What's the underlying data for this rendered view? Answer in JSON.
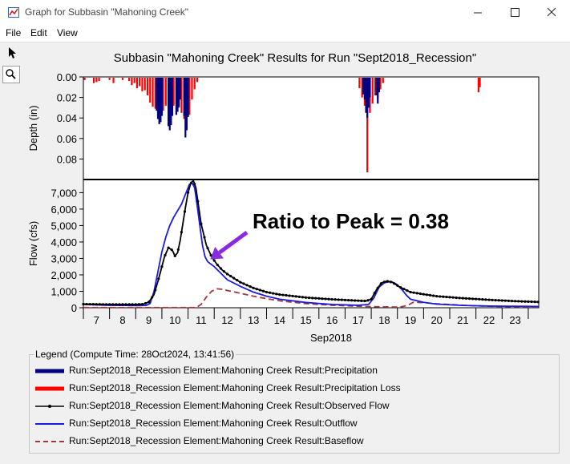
{
  "window": {
    "title": "Graph for Subbasin \"Mahoning Creek\"",
    "app_icon": "graph-app-icon",
    "controls": [
      "minimize-icon",
      "maximize-icon",
      "close-icon"
    ]
  },
  "menu": {
    "items": [
      "File",
      "Edit",
      "View"
    ]
  },
  "toolbar": {
    "tools": [
      "select-pointer-icon",
      "zoom-magnifier-icon"
    ],
    "active": "zoom-magnifier-icon"
  },
  "chart_data": {
    "type": "line",
    "title": "Subbasin \"Mahoning Creek\" Results for Run \"Sept2018_Recession\"",
    "xlabel": "Sep2018",
    "x_ticks": [
      "7",
      "8",
      "9",
      "10",
      "11",
      "12",
      "13",
      "14",
      "15",
      "16",
      "17",
      "18",
      "19",
      "20",
      "21",
      "22",
      "23"
    ],
    "x_range_days": [
      6.5,
      23.9
    ],
    "colors": {
      "precipitation": "#000080",
      "loss": "#ff0000",
      "observed": "#000000",
      "outflow": "#1a1ae6",
      "baseflow": "#9e3a3a"
    },
    "top_panel": {
      "ylabel": "Depth (in)",
      "y_ticks": [
        "0.00",
        "0.02",
        "0.04",
        "0.06",
        "0.08"
      ],
      "ylim": [
        0,
        0.1
      ],
      "inverted": true,
      "precipitation_bars": {
        "day": [
          9.3,
          9.35,
          9.4,
          9.45,
          9.5,
          9.75,
          9.8,
          9.85,
          9.9,
          10.05,
          10.1,
          10.15,
          10.2,
          10.35,
          10.4,
          10.45,
          10.5,
          17.2,
          17.25,
          17.3,
          17.35,
          17.4,
          17.45,
          17.7,
          17.75,
          17.8
        ],
        "depth": [
          0.033,
          0.041,
          0.046,
          0.044,
          0.038,
          0.048,
          0.052,
          0.047,
          0.038,
          0.037,
          0.034,
          0.029,
          0.022,
          0.038,
          0.059,
          0.052,
          0.039,
          0.017,
          0.022,
          0.035,
          0.04,
          0.03,
          0.02,
          0.018,
          0.026,
          0.015
        ]
      },
      "loss_bars": {
        "day": [
          6.55,
          6.9,
          7.0,
          7.1,
          7.5,
          7.65,
          8.0,
          8.25,
          8.35,
          8.45,
          8.55,
          8.65,
          8.75,
          8.85,
          8.95,
          9.05,
          9.15,
          9.25,
          9.35,
          9.45,
          9.55,
          9.65,
          9.75,
          9.85,
          9.95,
          10.05,
          10.15,
          10.25,
          10.35,
          10.45,
          10.55,
          10.65,
          10.75,
          10.85,
          17.05,
          17.15,
          17.25,
          17.35,
          17.45,
          17.55,
          17.65,
          17.75,
          17.85,
          17.95,
          21.6,
          21.65
        ],
        "depth": [
          0.003,
          0.006,
          0.005,
          0.004,
          0.003,
          0.006,
          0.003,
          0.004,
          0.008,
          0.006,
          0.011,
          0.009,
          0.014,
          0.013,
          0.018,
          0.025,
          0.029,
          0.031,
          0.041,
          0.044,
          0.033,
          0.028,
          0.034,
          0.039,
          0.028,
          0.026,
          0.03,
          0.035,
          0.041,
          0.048,
          0.037,
          0.022,
          0.012,
          0.005,
          0.011,
          0.02,
          0.028,
          0.093,
          0.035,
          0.026,
          0.018,
          0.021,
          0.012,
          0.006,
          0.015,
          0.01
        ]
      }
    },
    "bottom_panel": {
      "ylabel": "Flow (cfs)",
      "y_ticks": [
        "0",
        "1,000",
        "2,000",
        "3,000",
        "4,000",
        "5,000",
        "6,000",
        "7,000"
      ],
      "ylim": [
        0,
        7800
      ]
    },
    "series": [
      {
        "name": "Run:Sept2018_Recession Element:Mahoning Creek Result:Precipitation",
        "color": "#000080",
        "style": "thick-solid"
      },
      {
        "name": "Run:Sept2018_Recession Element:Mahoning Creek Result:Precipitation Loss",
        "color": "#ff0000",
        "style": "thick-solid"
      },
      {
        "name": "Run:Sept2018_Recession Element:Mahoning Creek Result:Observed Flow",
        "color": "#000000",
        "style": "solid-dots",
        "x": [
          6.5,
          7.0,
          7.5,
          8.0,
          8.5,
          8.8,
          9.0,
          9.2,
          9.4,
          9.6,
          9.75,
          9.9,
          10.0,
          10.1,
          10.2,
          10.3,
          10.4,
          10.5,
          10.6,
          10.7,
          10.8,
          10.9,
          11.0,
          11.2,
          11.4,
          11.6,
          11.8,
          12.0,
          12.5,
          13.0,
          13.5,
          14.0,
          15.0,
          16.0,
          17.0,
          17.3,
          17.5,
          17.7,
          17.9,
          18.1,
          18.3,
          18.6,
          19.0,
          19.5,
          20.0,
          21.0,
          22.0,
          23.0,
          23.9
        ],
        "y": [
          220,
          210,
          200,
          200,
          200,
          220,
          350,
          800,
          1900,
          3100,
          3650,
          3500,
          3150,
          3350,
          4100,
          5100,
          6100,
          7000,
          7550,
          7750,
          7300,
          6200,
          5100,
          3800,
          3100,
          2650,
          2300,
          2050,
          1550,
          1200,
          950,
          800,
          620,
          510,
          430,
          410,
          520,
          1100,
          1520,
          1620,
          1550,
          1250,
          950,
          820,
          700,
          580,
          480,
          400,
          350
        ]
      },
      {
        "name": "Run:Sept2018_Recession Element:Mahoning Creek Result:Outflow",
        "color": "#1a1ae6",
        "style": "solid",
        "x": [
          6.5,
          7.0,
          7.5,
          8.0,
          8.5,
          8.9,
          9.05,
          9.2,
          9.35,
          9.5,
          9.65,
          9.8,
          9.95,
          10.1,
          10.25,
          10.4,
          10.55,
          10.65,
          10.75,
          10.85,
          10.95,
          11.05,
          11.15,
          11.25,
          11.5,
          11.75,
          12.0,
          12.5,
          13.0,
          13.5,
          14.0,
          15.0,
          16.0,
          17.0,
          17.4,
          17.6,
          17.8,
          18.0,
          18.25,
          18.45,
          18.65,
          18.85,
          19.0,
          19.5,
          20.0,
          21.0,
          22.0,
          23.0,
          23.9
        ],
        "y": [
          200,
          170,
          150,
          140,
          130,
          140,
          260,
          1000,
          2200,
          3400,
          4300,
          5000,
          5500,
          5900,
          6300,
          6900,
          7500,
          7600,
          7300,
          6200,
          5000,
          3800,
          3100,
          2800,
          2500,
          2100,
          1700,
          1300,
          950,
          700,
          520,
          320,
          200,
          150,
          200,
          600,
          1250,
          1520,
          1600,
          1450,
          1150,
          750,
          520,
          330,
          220,
          140,
          100,
          90,
          80
        ]
      },
      {
        "name": "Run:Sept2018_Recession Element:Mahoning Creek Result:Baseflow",
        "color": "#9e3a3a",
        "style": "dashed",
        "x": [
          6.5,
          7.0,
          8.0,
          9.0,
          10.0,
          10.8,
          11.0,
          11.2,
          11.4,
          11.6,
          11.8,
          12.0,
          12.5,
          13.0,
          13.5,
          14.0,
          15.0,
          16.0,
          17.0,
          18.0,
          18.6,
          18.9,
          19.1,
          19.5,
          20.0,
          21.0,
          22.0,
          23.0,
          23.9
        ],
        "y": [
          10,
          10,
          10,
          10,
          10,
          10,
          200,
          650,
          1000,
          1150,
          1120,
          1050,
          880,
          700,
          550,
          420,
          250,
          150,
          90,
          55,
          40,
          150,
          330,
          310,
          240,
          150,
          90,
          60,
          45
        ]
      }
    ],
    "annotation": {
      "text": "Ratio to Peak = 0.38",
      "arrow_color": "#8a2be2",
      "points_at": {
        "day": 11.35,
        "flow": 2950
      }
    },
    "legend": {
      "caption": "Legend (Compute Time: 28Oct2024, 13:41:56)",
      "placement": "bottom"
    }
  }
}
